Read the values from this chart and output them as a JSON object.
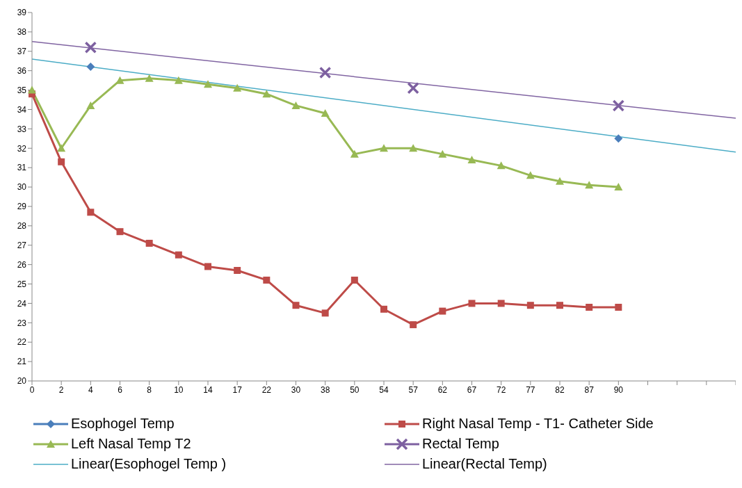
{
  "chart_data": {
    "type": "line",
    "categories": [
      "0",
      "2",
      "4",
      "6",
      "8",
      "10",
      "14",
      "17",
      "22",
      "30",
      "38",
      "50",
      "54",
      "57",
      "62",
      "67",
      "72",
      "77",
      "82",
      "87",
      "90",
      null,
      null,
      null,
      null
    ],
    "ylim": [
      20,
      39
    ],
    "yticks": [
      20,
      21,
      22,
      23,
      24,
      25,
      26,
      27,
      28,
      29,
      30,
      31,
      32,
      33,
      34,
      35,
      36,
      37,
      38,
      39
    ],
    "grid": false,
    "legend": "bottom",
    "series": [
      {
        "name": "Esophogel Temp",
        "type": "scatter",
        "marker": "diamond",
        "color": "#4a7ebb",
        "values": [
          null,
          null,
          36.2,
          null,
          null,
          null,
          null,
          null,
          null,
          null,
          null,
          null,
          null,
          null,
          null,
          null,
          null,
          null,
          null,
          null,
          32.5,
          null,
          null,
          null,
          null
        ]
      },
      {
        "name": "Right Nasal Temp - T1- Catheter Side",
        "marker": "square",
        "color": "#be4b48",
        "values": [
          34.8,
          31.3,
          28.7,
          27.7,
          27.1,
          26.5,
          25.9,
          25.7,
          25.2,
          23.9,
          23.5,
          25.2,
          23.7,
          22.9,
          23.6,
          24.0,
          24.0,
          23.9,
          23.9,
          23.8,
          23.8,
          null,
          null,
          null,
          null
        ]
      },
      {
        "name": "Left Nasal Temp T2",
        "marker": "triangle",
        "color": "#98b954",
        "values": [
          35.0,
          32.0,
          34.2,
          35.5,
          35.6,
          35.5,
          35.3,
          35.1,
          34.8,
          34.2,
          33.8,
          31.7,
          32.0,
          32.0,
          31.7,
          31.4,
          31.1,
          30.6,
          30.3,
          30.1,
          30.0,
          null,
          null,
          null,
          null
        ]
      },
      {
        "name": "Rectal Temp",
        "type": "scatter",
        "marker": "cross",
        "color": "#7d60a0",
        "values": [
          null,
          null,
          37.2,
          null,
          null,
          null,
          null,
          null,
          null,
          null,
          35.9,
          null,
          null,
          35.1,
          null,
          null,
          null,
          null,
          null,
          null,
          34.2,
          null,
          null,
          null,
          null
        ]
      },
      {
        "name": "Linear(Esophogel Temp )",
        "type": "line",
        "marker": "none",
        "color": "#4bacc6",
        "values": [
          36.6,
          null,
          null,
          null,
          null,
          null,
          null,
          null,
          null,
          null,
          null,
          null,
          null,
          null,
          null,
          null,
          null,
          null,
          null,
          null,
          null,
          null,
          null,
          null,
          31.8
        ]
      },
      {
        "name": "Linear(Rectal Temp)",
        "type": "line",
        "marker": "none",
        "color": "#8064a2",
        "values": [
          37.5,
          null,
          null,
          null,
          null,
          null,
          null,
          null,
          null,
          null,
          null,
          null,
          null,
          null,
          null,
          null,
          null,
          null,
          null,
          null,
          null,
          null,
          null,
          null,
          33.55
        ]
      }
    ]
  }
}
